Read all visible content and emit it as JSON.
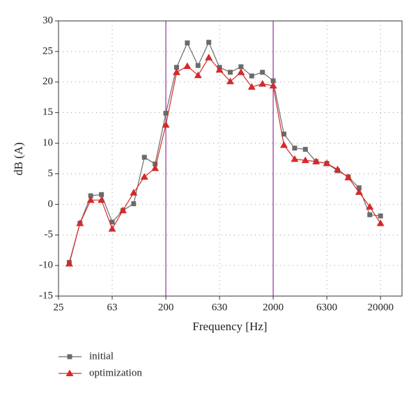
{
  "chart_data": {
    "type": "line",
    "x_label": "Frequency [Hz]",
    "y_label": "dB (A)",
    "x": [
      1,
      2,
      3,
      4,
      5,
      6,
      7,
      8,
      9,
      10,
      11,
      12,
      13,
      14,
      15,
      16,
      17,
      18,
      19,
      20,
      21,
      22,
      23,
      24,
      25,
      26,
      27,
      28,
      29,
      30
    ],
    "series": [
      {
        "name": "initial",
        "color": "#6b6b6b",
        "marker": "square",
        "values": [
          -9.5,
          -3.1,
          1.4,
          1.6,
          -2.9,
          -1.0,
          0.1,
          7.7,
          6.6,
          14.9,
          22.4,
          26.4,
          22.7,
          26.5,
          22.4,
          21.6,
          22.5,
          21.0,
          21.6,
          20.2,
          11.5,
          9.2,
          9.0,
          7.0,
          6.7,
          5.5,
          4.5,
          2.7,
          -1.7,
          -1.9
        ]
      },
      {
        "name": "optimization",
        "color": "#d42a2a",
        "marker": "triangle",
        "values": [
          -9.7,
          -3.1,
          0.7,
          0.7,
          -4.0,
          -1.0,
          1.9,
          4.5,
          5.9,
          13.0,
          21.6,
          22.6,
          21.1,
          24.0,
          22.0,
          20.1,
          21.6,
          19.2,
          19.7,
          19.4,
          9.7,
          7.4,
          7.2,
          7.0,
          6.7,
          5.7,
          4.4,
          2.0,
          -0.4,
          -3.1
        ]
      }
    ],
    "xlim": [
      0,
      32
    ],
    "xticks": [
      {
        "value": 0,
        "label": "25"
      },
      {
        "value": 5,
        "label": "63"
      },
      {
        "value": 10,
        "label": "200"
      },
      {
        "value": 15,
        "label": "630"
      },
      {
        "value": 20,
        "label": "2000"
      },
      {
        "value": 25,
        "label": "6300"
      },
      {
        "value": 30,
        "label": "20000"
      }
    ],
    "ylim": [
      -15,
      30
    ],
    "yticks": [
      -15,
      -10,
      -5,
      0,
      5,
      10,
      15,
      20,
      25,
      30
    ],
    "vlines": [
      10,
      20
    ],
    "vline_color": "#9b3fa6",
    "grid": true,
    "legend": "below"
  }
}
